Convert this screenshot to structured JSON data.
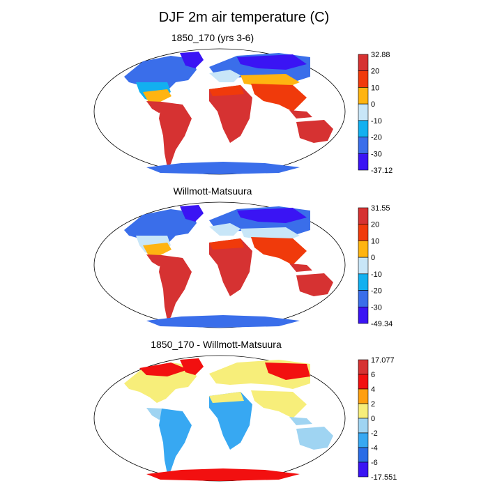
{
  "title": "DJF 2m air temperature (C)",
  "panels": [
    {
      "subtitle": "1850_170 (yrs 3-6)",
      "colorbar": {
        "labels": [
          "32.88",
          "20",
          "10",
          "0",
          "-10",
          "-20",
          "-30",
          "-37.12"
        ],
        "colors": [
          "#d63232",
          "#f03a0b",
          "#ffb411",
          "#c8e6f8",
          "#12b0f0",
          "#3a6eea",
          "#3a14f4"
        ]
      }
    },
    {
      "subtitle": "Willmott-Matsuura",
      "colorbar": {
        "labels": [
          "31.55",
          "20",
          "10",
          "0",
          "-10",
          "-20",
          "-30",
          "-49.34"
        ],
        "colors": [
          "#d63232",
          "#f03a0b",
          "#ffb411",
          "#c8e6f8",
          "#12b0f0",
          "#3a6eea",
          "#3a14f4"
        ]
      }
    },
    {
      "subtitle": "1850_170 - Willmott-Matsuura",
      "colorbar": {
        "labels": [
          "17.077",
          "6",
          "4",
          "2",
          "0",
          "-2",
          "-4",
          "-6",
          "-17.551"
        ],
        "colors": [
          "#d63232",
          "#f21010",
          "#ff9f10",
          "#f7ee7a",
          "#9fd4f2",
          "#37a8f2",
          "#2a6ce6",
          "#3a14f4"
        ]
      }
    }
  ]
}
